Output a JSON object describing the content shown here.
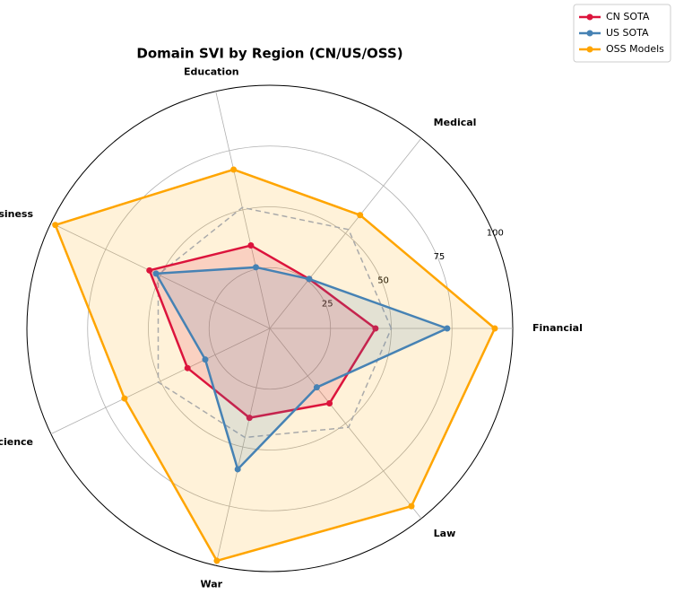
{
  "chart_data": {
    "type": "radar",
    "title": "Domain SVI by Region (CN/US/OSS)",
    "categories": [
      "Financial",
      "Medical",
      "Education",
      "Business",
      "Science",
      "War",
      "Law"
    ],
    "series": [
      {
        "name": "CN SOTA",
        "color": "#dc143c",
        "values": [
          43.5,
          26,
          35,
          55,
          37.6,
          37.7,
          39.4
        ]
      },
      {
        "name": "US SOTA",
        "color": "#4682b4",
        "values": [
          73,
          26,
          25.8,
          52,
          29.5,
          59.4,
          31
        ]
      },
      {
        "name": "OSS Models",
        "color": "#ffa500",
        "values": [
          92.6,
          59.6,
          67,
          98,
          66.4,
          98,
          93.5
        ]
      },
      {
        "color": "#aaaaaa",
        "dashed": true,
        "values": [
          50,
          52,
          51,
          51,
          51,
          46,
          52
        ]
      }
    ],
    "rlim": [
      0,
      100
    ],
    "rticks": [
      25,
      50,
      75,
      100
    ],
    "grid": true,
    "legend": "upper right"
  }
}
